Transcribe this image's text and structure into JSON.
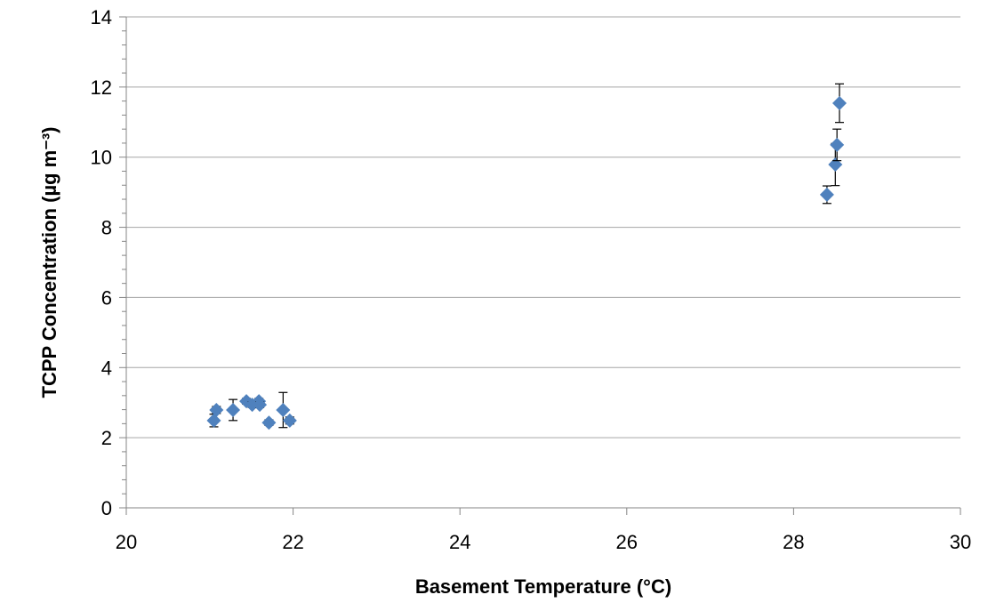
{
  "chart_data": {
    "type": "scatter",
    "x_label": "Basement Temperature (°C)",
    "y_label": "TCPP Concentration (µg m⁻³)",
    "series": [
      {
        "color": "#4f81bd",
        "x": [
          21.05,
          21.08,
          21.28,
          21.44,
          21.51,
          21.59,
          21.6,
          21.71,
          21.88,
          21.96,
          28.4,
          28.5,
          28.52,
          28.55
        ],
        "values": [
          2.49,
          2.79,
          2.79,
          3.04,
          2.94,
          3.04,
          2.94,
          2.43,
          2.79,
          2.49,
          8.93,
          9.79,
          10.35,
          11.54
        ],
        "errors": [
          0.18,
          0.1,
          0.3,
          0.08,
          0.08,
          0.08,
          0.08,
          0.08,
          0.5,
          0.1,
          0.25,
          0.6,
          0.45,
          0.55
        ]
      }
    ],
    "xlim": [
      20,
      30
    ],
    "xticks": [
      20,
      22,
      24,
      26,
      28,
      30
    ],
    "ylim": [
      0,
      14
    ],
    "yticks": [
      0,
      2,
      4,
      6,
      8,
      10,
      12,
      14
    ],
    "grid": true
  }
}
